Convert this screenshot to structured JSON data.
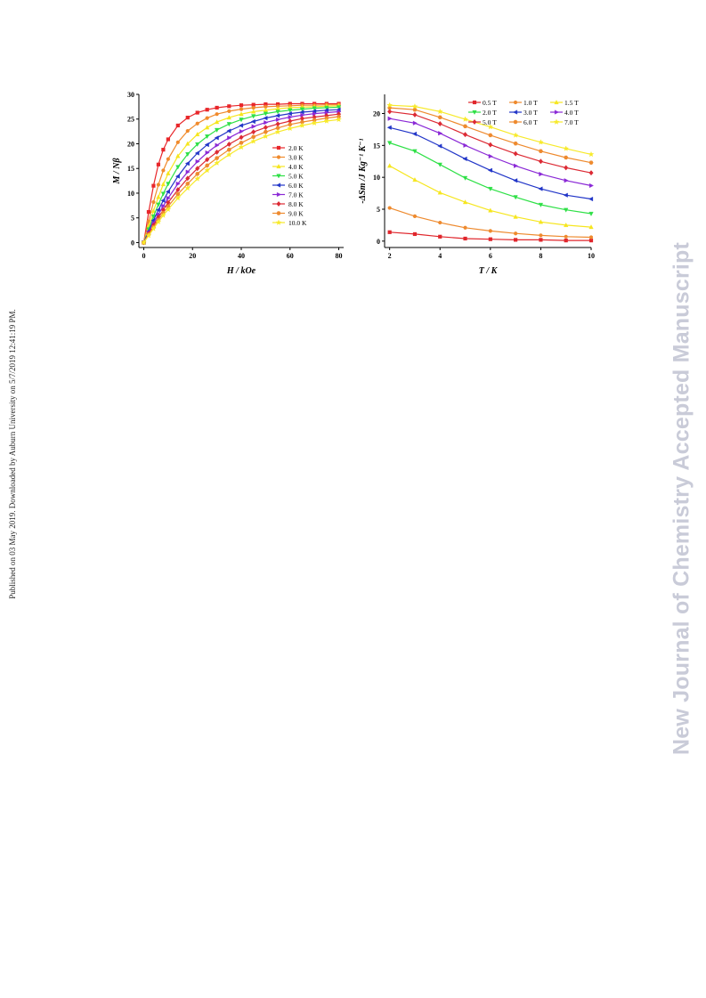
{
  "side_note": "Published on 03 May 2019. Downloaded by Auburn University on 5/7/2019 12:41:19 PM.",
  "watermark": "New Journal of Chemistry Accepted Manuscript",
  "chart_data": [
    {
      "type": "line",
      "xlabel": "H / kOe",
      "ylabel": "M / Nβ",
      "xlim": [
        -2,
        82
      ],
      "ylim": [
        -1,
        30
      ],
      "xticks": [
        0,
        20,
        40,
        60,
        80
      ],
      "yticks": [
        0,
        5,
        10,
        15,
        20,
        25,
        30
      ],
      "legend_position": "right",
      "series": [
        {
          "name": "2.0 K",
          "color": "#e8262a",
          "marker": "square",
          "x": [
            0,
            2,
            4,
            6,
            8,
            10,
            14,
            18,
            22,
            26,
            30,
            35,
            40,
            45,
            50,
            55,
            60,
            65,
            70,
            75,
            80
          ],
          "y": [
            0,
            6.2,
            11.5,
            15.8,
            18.8,
            20.9,
            23.7,
            25.3,
            26.3,
            26.9,
            27.3,
            27.6,
            27.8,
            27.9,
            28.0,
            28.0,
            28.1,
            28.1,
            28.1,
            28.1,
            28.1
          ]
        },
        {
          "name": "3.0 K",
          "color": "#f08a2c",
          "marker": "circle",
          "x": [
            0,
            2,
            4,
            6,
            8,
            10,
            14,
            18,
            22,
            26,
            30,
            35,
            40,
            45,
            50,
            55,
            60,
            65,
            70,
            75,
            80
          ],
          "y": [
            0,
            4.3,
            8.2,
            11.7,
            14.6,
            16.9,
            20.3,
            22.6,
            24.1,
            25.2,
            26.0,
            26.6,
            27.0,
            27.3,
            27.5,
            27.6,
            27.7,
            27.8,
            27.8,
            27.9,
            27.9
          ]
        },
        {
          "name": "4.0 K",
          "color": "#f6e61e",
          "marker": "triangle-up",
          "x": [
            0,
            2,
            4,
            6,
            8,
            10,
            14,
            18,
            22,
            26,
            30,
            35,
            40,
            45,
            50,
            55,
            60,
            65,
            70,
            75,
            80
          ],
          "y": [
            0,
            3.3,
            6.4,
            9.2,
            11.8,
            14.0,
            17.5,
            20.0,
            21.9,
            23.3,
            24.4,
            25.3,
            26.0,
            26.5,
            26.8,
            27.1,
            27.3,
            27.4,
            27.5,
            27.6,
            27.7
          ]
        },
        {
          "name": "5.0 K",
          "color": "#2ee046",
          "marker": "triangle-down",
          "x": [
            0,
            2,
            4,
            6,
            8,
            10,
            14,
            18,
            22,
            26,
            30,
            35,
            40,
            45,
            50,
            55,
            60,
            65,
            70,
            75,
            80
          ],
          "y": [
            0,
            2.7,
            5.3,
            7.7,
            9.9,
            11.9,
            15.3,
            17.9,
            19.9,
            21.5,
            22.8,
            24.0,
            24.9,
            25.6,
            26.1,
            26.5,
            26.8,
            27.0,
            27.2,
            27.3,
            27.4
          ]
        },
        {
          "name": "6.0 K",
          "color": "#2236c8",
          "marker": "triangle-left",
          "x": [
            0,
            2,
            4,
            6,
            8,
            10,
            14,
            18,
            22,
            26,
            30,
            35,
            40,
            45,
            50,
            55,
            60,
            65,
            70,
            75,
            80
          ],
          "y": [
            0,
            2.3,
            4.5,
            6.6,
            8.5,
            10.3,
            13.4,
            16.0,
            18.1,
            19.8,
            21.2,
            22.6,
            23.7,
            24.5,
            25.2,
            25.7,
            26.1,
            26.4,
            26.6,
            26.8,
            26.9
          ]
        },
        {
          "name": "7.0 K",
          "color": "#8a28d6",
          "marker": "triangle-right",
          "x": [
            0,
            2,
            4,
            6,
            8,
            10,
            14,
            18,
            22,
            26,
            30,
            35,
            40,
            45,
            50,
            55,
            60,
            65,
            70,
            75,
            80
          ],
          "y": [
            0,
            2.0,
            3.9,
            5.7,
            7.4,
            9.0,
            11.9,
            14.3,
            16.4,
            18.2,
            19.7,
            21.2,
            22.5,
            23.5,
            24.3,
            24.9,
            25.4,
            25.8,
            26.1,
            26.3,
            26.5
          ]
        },
        {
          "name": "8.0 K",
          "color": "#dc2a34",
          "marker": "diamond",
          "x": [
            0,
            2,
            4,
            6,
            8,
            10,
            14,
            18,
            22,
            26,
            30,
            35,
            40,
            45,
            50,
            55,
            60,
            65,
            70,
            75,
            80
          ],
          "y": [
            0,
            1.8,
            3.5,
            5.1,
            6.6,
            8.1,
            10.7,
            13.0,
            15.0,
            16.8,
            18.3,
            19.9,
            21.3,
            22.4,
            23.3,
            24.0,
            24.6,
            25.1,
            25.4,
            25.7,
            26.0
          ]
        },
        {
          "name": "9.0 K",
          "color": "#ee8a2e",
          "marker": "hexagon",
          "x": [
            0,
            2,
            4,
            6,
            8,
            10,
            14,
            18,
            22,
            26,
            30,
            35,
            40,
            45,
            50,
            55,
            60,
            65,
            70,
            75,
            80
          ],
          "y": [
            0,
            1.6,
            3.1,
            4.6,
            6.0,
            7.3,
            9.8,
            11.9,
            13.9,
            15.6,
            17.1,
            18.8,
            20.2,
            21.4,
            22.4,
            23.2,
            23.9,
            24.4,
            24.8,
            25.2,
            25.5
          ]
        },
        {
          "name": "10.0 K",
          "color": "#f7ea2a",
          "marker": "star",
          "x": [
            0,
            2,
            4,
            6,
            8,
            10,
            14,
            18,
            22,
            26,
            30,
            35,
            40,
            45,
            50,
            55,
            60,
            65,
            70,
            75,
            80
          ],
          "y": [
            0,
            1.4,
            2.8,
            4.2,
            5.5,
            6.7,
            9.0,
            11.0,
            12.9,
            14.6,
            16.1,
            17.8,
            19.3,
            20.5,
            21.5,
            22.4,
            23.1,
            23.7,
            24.2,
            24.6,
            24.9
          ]
        }
      ]
    },
    {
      "type": "line",
      "xlabel": "T / K",
      "ylabel": "-ΔSm /J Kg⁻¹ K⁻¹",
      "xlim": [
        1.8,
        10
      ],
      "ylim": [
        -1,
        23
      ],
      "xticks": [
        2,
        4,
        6,
        8,
        10
      ],
      "yticks": [
        0,
        5,
        10,
        15,
        20
      ],
      "legend_position": "top",
      "series": [
        {
          "name": "0.5 T",
          "color": "#e0262c",
          "marker": "square",
          "x": [
            2,
            3,
            4,
            5,
            6,
            7,
            8,
            9,
            10
          ],
          "y": [
            1.4,
            1.1,
            0.7,
            0.4,
            0.3,
            0.2,
            0.2,
            0.1,
            0.1
          ]
        },
        {
          "name": "1.0 T",
          "color": "#ee8a2e",
          "marker": "circle",
          "x": [
            2,
            3,
            4,
            5,
            6,
            7,
            8,
            9,
            10
          ],
          "y": [
            5.2,
            3.9,
            2.9,
            2.1,
            1.6,
            1.2,
            0.9,
            0.7,
            0.6
          ]
        },
        {
          "name": "1.5 T",
          "color": "#f6e61e",
          "marker": "triangle-up",
          "x": [
            2,
            3,
            4,
            5,
            6,
            7,
            8,
            9,
            10
          ],
          "y": [
            11.8,
            9.6,
            7.6,
            6.1,
            4.8,
            3.8,
            3.0,
            2.5,
            2.2
          ]
        },
        {
          "name": "2.0 T",
          "color": "#2ee046",
          "marker": "triangle-down",
          "x": [
            2,
            3,
            4,
            5,
            6,
            7,
            8,
            9,
            10
          ],
          "y": [
            15.4,
            14.1,
            12.0,
            9.9,
            8.2,
            6.9,
            5.7,
            4.9,
            4.3
          ]
        },
        {
          "name": "3.0 T",
          "color": "#2236c8",
          "marker": "triangle-left",
          "x": [
            2,
            3,
            4,
            5,
            6,
            7,
            8,
            9,
            10
          ],
          "y": [
            17.8,
            16.8,
            14.9,
            12.9,
            11.1,
            9.5,
            8.2,
            7.2,
            6.6
          ]
        },
        {
          "name": "4.0 T",
          "color": "#8a28d6",
          "marker": "triangle-right",
          "x": [
            2,
            3,
            4,
            5,
            6,
            7,
            8,
            9,
            10
          ],
          "y": [
            19.2,
            18.5,
            16.9,
            15.0,
            13.3,
            11.8,
            10.5,
            9.5,
            8.7
          ]
        },
        {
          "name": "5.0 T",
          "color": "#dc2a34",
          "marker": "diamond",
          "x": [
            2,
            3,
            4,
            5,
            6,
            7,
            8,
            9,
            10
          ],
          "y": [
            20.3,
            19.8,
            18.4,
            16.7,
            15.1,
            13.7,
            12.5,
            11.5,
            10.7
          ]
        },
        {
          "name": "6.0 T",
          "color": "#ee8a2e",
          "marker": "hexagon",
          "x": [
            2,
            3,
            4,
            5,
            6,
            7,
            8,
            9,
            10
          ],
          "y": [
            20.9,
            20.6,
            19.4,
            18.0,
            16.6,
            15.3,
            14.1,
            13.1,
            12.3
          ]
        },
        {
          "name": "7.0 T",
          "color": "#f7ea2a",
          "marker": "star",
          "x": [
            2,
            3,
            4,
            5,
            6,
            7,
            8,
            9,
            10
          ],
          "y": [
            21.3,
            21.1,
            20.3,
            19.1,
            17.9,
            16.6,
            15.5,
            14.5,
            13.6
          ]
        }
      ]
    }
  ]
}
